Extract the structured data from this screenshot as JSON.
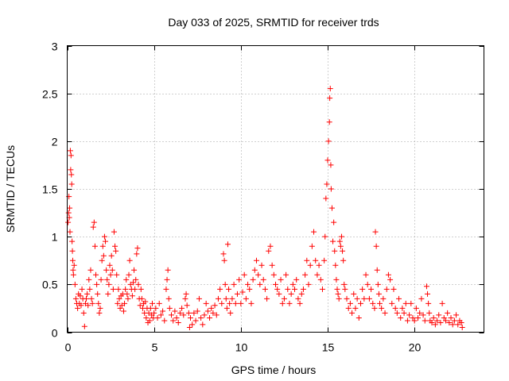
{
  "chart_data": {
    "type": "scatter",
    "title": "Day 033 of 2025, SRMTID for receiver trds",
    "xlabel": "GPS time / hours",
    "ylabel": "SRMTID / TECUs",
    "xlim": [
      0,
      24
    ],
    "ylim": [
      0,
      3
    ],
    "x_ticks": [
      0,
      5,
      10,
      15,
      20
    ],
    "y_ticks": [
      0,
      0.5,
      1,
      1.5,
      2,
      2.5,
      3
    ],
    "x_tick_labels": [
      "0",
      "5",
      "10",
      "15",
      "20"
    ],
    "y_tick_labels": [
      "0",
      "0.5",
      "1",
      "1.5",
      "2",
      "2.5",
      "3"
    ],
    "grid": true,
    "marker": "+",
    "color": "#ff0000",
    "series": [
      {
        "name": "SRMTID",
        "points": [
          [
            0.05,
            1.15
          ],
          [
            0.08,
            1.25
          ],
          [
            0.1,
            1.42
          ],
          [
            0.12,
            1.2
          ],
          [
            0.14,
            1.3
          ],
          [
            0.16,
            1.05
          ],
          [
            0.18,
            1.9
          ],
          [
            0.2,
            1.7
          ],
          [
            0.22,
            1.85
          ],
          [
            0.24,
            1.65
          ],
          [
            0.26,
            1.55
          ],
          [
            0.28,
            0.95
          ],
          [
            0.3,
            0.85
          ],
          [
            0.32,
            0.75
          ],
          [
            0.34,
            0.65
          ],
          [
            0.36,
            0.6
          ],
          [
            0.4,
            0.7
          ],
          [
            0.45,
            0.5
          ],
          [
            0.5,
            0.35
          ],
          [
            0.55,
            0.3
          ],
          [
            0.6,
            0.25
          ],
          [
            0.65,
            0.4
          ],
          [
            0.7,
            0.3
          ],
          [
            0.75,
            0.38
          ],
          [
            0.8,
            0.28
          ],
          [
            0.85,
            0.45
          ],
          [
            0.9,
            0.35
          ],
          [
            0.95,
            0.2
          ],
          [
            1.0,
            0.06
          ],
          [
            1.05,
            0.3
          ],
          [
            1.1,
            0.35
          ],
          [
            1.15,
            0.4
          ],
          [
            1.2,
            0.28
          ],
          [
            1.25,
            0.55
          ],
          [
            1.3,
            0.45
          ],
          [
            1.35,
            0.65
          ],
          [
            1.4,
            0.35
          ],
          [
            1.45,
            0.3
          ],
          [
            1.5,
            1.1
          ],
          [
            1.55,
            1.15
          ],
          [
            1.6,
            0.9
          ],
          [
            1.65,
            0.6
          ],
          [
            1.7,
            0.5
          ],
          [
            1.75,
            0.4
          ],
          [
            1.8,
            0.3
          ],
          [
            1.85,
            0.2
          ],
          [
            1.9,
            0.25
          ],
          [
            1.95,
            0.55
          ],
          [
            2.0,
            0.75
          ],
          [
            2.05,
            0.9
          ],
          [
            2.1,
            0.8
          ],
          [
            2.15,
            1.0
          ],
          [
            2.2,
            0.95
          ],
          [
            2.25,
            0.65
          ],
          [
            2.3,
            0.55
          ],
          [
            2.35,
            0.4
          ],
          [
            2.4,
            0.5
          ],
          [
            2.45,
            0.7
          ],
          [
            2.5,
            0.6
          ],
          [
            2.55,
            0.8
          ],
          [
            2.6,
            0.65
          ],
          [
            2.65,
            0.45
          ],
          [
            2.7,
            1.05
          ],
          [
            2.75,
            0.9
          ],
          [
            2.8,
            0.85
          ],
          [
            2.85,
            0.6
          ],
          [
            2.9,
            0.3
          ],
          [
            2.95,
            0.45
          ],
          [
            3.0,
            0.35
          ],
          [
            3.05,
            0.25
          ],
          [
            3.1,
            0.38
          ],
          [
            3.15,
            0.28
          ],
          [
            3.2,
            0.4
          ],
          [
            3.25,
            0.22
          ],
          [
            3.3,
            0.3
          ],
          [
            3.35,
            0.45
          ],
          [
            3.4,
            0.55
          ],
          [
            3.45,
            0.4
          ],
          [
            3.5,
            0.35
          ],
          [
            3.55,
            0.6
          ],
          [
            3.6,
            0.75
          ],
          [
            3.65,
            0.5
          ],
          [
            3.7,
            0.45
          ],
          [
            3.75,
            0.38
          ],
          [
            3.8,
            0.52
          ],
          [
            3.85,
            0.65
          ],
          [
            3.9,
            0.45
          ],
          [
            3.95,
            0.55
          ],
          [
            4.0,
            0.82
          ],
          [
            4.05,
            0.88
          ],
          [
            4.1,
            0.5
          ],
          [
            4.15,
            0.35
          ],
          [
            4.2,
            0.28
          ],
          [
            4.25,
            0.45
          ],
          [
            4.3,
            0.35
          ],
          [
            4.35,
            0.25
          ],
          [
            4.4,
            0.3
          ],
          [
            4.45,
            0.2
          ],
          [
            4.5,
            0.32
          ],
          [
            4.55,
            0.15
          ],
          [
            4.6,
            0.25
          ],
          [
            4.65,
            0.1
          ],
          [
            4.7,
            0.2
          ],
          [
            4.75,
            0.12
          ],
          [
            4.8,
            0.25
          ],
          [
            4.85,
            0.18
          ],
          [
            4.9,
            0.3
          ],
          [
            4.95,
            0.15
          ],
          [
            5.0,
            0.2
          ],
          [
            5.1,
            0.25
          ],
          [
            5.2,
            0.15
          ],
          [
            5.3,
            0.3
          ],
          [
            5.4,
            0.18
          ],
          [
            5.5,
            0.22
          ],
          [
            5.6,
            0.12
          ],
          [
            5.7,
            0.45
          ],
          [
            5.75,
            0.55
          ],
          [
            5.8,
            0.65
          ],
          [
            5.85,
            0.35
          ],
          [
            5.9,
            0.25
          ],
          [
            6.0,
            0.18
          ],
          [
            6.1,
            0.12
          ],
          [
            6.2,
            0.22
          ],
          [
            6.3,
            0.15
          ],
          [
            6.4,
            0.1
          ],
          [
            6.5,
            0.2
          ],
          [
            6.6,
            0.25
          ],
          [
            6.7,
            0.18
          ],
          [
            6.8,
            0.35
          ],
          [
            6.85,
            0.4
          ],
          [
            6.9,
            0.28
          ],
          [
            7.0,
            0.2
          ],
          [
            7.05,
            0.05
          ],
          [
            7.1,
            0.15
          ],
          [
            7.2,
            0.08
          ],
          [
            7.3,
            0.2
          ],
          [
            7.4,
            0.12
          ],
          [
            7.5,
            0.22
          ],
          [
            7.6,
            0.35
          ],
          [
            7.7,
            0.15
          ],
          [
            7.8,
            0.08
          ],
          [
            7.9,
            0.18
          ],
          [
            8.0,
            0.3
          ],
          [
            8.1,
            0.22
          ],
          [
            8.2,
            0.15
          ],
          [
            8.3,
            0.25
          ],
          [
            8.4,
            0.2
          ],
          [
            8.5,
            0.28
          ],
          [
            8.6,
            0.18
          ],
          [
            8.7,
            0.35
          ],
          [
            8.8,
            0.45
          ],
          [
            8.9,
            0.3
          ],
          [
            9.0,
            0.82
          ],
          [
            9.05,
            0.75
          ],
          [
            9.1,
            0.5
          ],
          [
            9.15,
            0.35
          ],
          [
            9.2,
            0.25
          ],
          [
            9.25,
            0.92
          ],
          [
            9.3,
            0.45
          ],
          [
            9.35,
            0.3
          ],
          [
            9.4,
            0.2
          ],
          [
            9.5,
            0.35
          ],
          [
            9.6,
            0.5
          ],
          [
            9.7,
            0.3
          ],
          [
            9.8,
            0.4
          ],
          [
            9.9,
            0.55
          ],
          [
            10.0,
            0.3
          ],
          [
            10.1,
            0.42
          ],
          [
            10.2,
            0.6
          ],
          [
            10.3,
            0.35
          ],
          [
            10.4,
            0.5
          ],
          [
            10.5,
            0.45
          ],
          [
            10.6,
            0.3
          ],
          [
            10.7,
            0.55
          ],
          [
            10.8,
            0.65
          ],
          [
            10.9,
            0.75
          ],
          [
            11.0,
            0.6
          ],
          [
            11.1,
            0.5
          ],
          [
            11.2,
            0.7
          ],
          [
            11.3,
            0.55
          ],
          [
            11.4,
            0.45
          ],
          [
            11.5,
            0.35
          ],
          [
            11.6,
            0.85
          ],
          [
            11.7,
            0.9
          ],
          [
            11.8,
            0.7
          ],
          [
            11.9,
            0.6
          ],
          [
            12.0,
            0.5
          ],
          [
            12.1,
            0.45
          ],
          [
            12.2,
            0.4
          ],
          [
            12.3,
            0.55
          ],
          [
            12.4,
            0.3
          ],
          [
            12.5,
            0.35
          ],
          [
            12.6,
            0.6
          ],
          [
            12.7,
            0.45
          ],
          [
            12.8,
            0.3
          ],
          [
            12.9,
            0.4
          ],
          [
            13.0,
            0.5
          ],
          [
            13.1,
            0.45
          ],
          [
            13.2,
            0.55
          ],
          [
            13.3,
            0.35
          ],
          [
            13.4,
            0.3
          ],
          [
            13.5,
            0.4
          ],
          [
            13.6,
            0.45
          ],
          [
            13.7,
            0.6
          ],
          [
            13.8,
            0.75
          ],
          [
            13.9,
            0.5
          ],
          [
            14.0,
            0.7
          ],
          [
            14.1,
            0.9
          ],
          [
            14.2,
            1.05
          ],
          [
            14.3,
            0.75
          ],
          [
            14.4,
            0.6
          ],
          [
            14.5,
            0.7
          ],
          [
            14.6,
            0.55
          ],
          [
            14.7,
            0.45
          ],
          [
            14.8,
            0.75
          ],
          [
            14.85,
            1.0
          ],
          [
            14.9,
            1.4
          ],
          [
            14.95,
            1.55
          ],
          [
            15.0,
            1.8
          ],
          [
            15.05,
            2.0
          ],
          [
            15.1,
            2.2
          ],
          [
            15.12,
            2.45
          ],
          [
            15.15,
            2.55
          ],
          [
            15.18,
            1.75
          ],
          [
            15.2,
            1.5
          ],
          [
            15.25,
            1.3
          ],
          [
            15.3,
            0.95
          ],
          [
            15.35,
            1.15
          ],
          [
            15.4,
            0.85
          ],
          [
            15.45,
            0.7
          ],
          [
            15.5,
            0.55
          ],
          [
            15.55,
            0.45
          ],
          [
            15.6,
            0.4
          ],
          [
            15.65,
            0.35
          ],
          [
            15.7,
            0.95
          ],
          [
            15.75,
            0.9
          ],
          [
            15.8,
            1.0
          ],
          [
            15.85,
            0.85
          ],
          [
            15.9,
            0.75
          ],
          [
            15.95,
            0.5
          ],
          [
            16.0,
            0.45
          ],
          [
            16.1,
            0.35
          ],
          [
            16.2,
            0.25
          ],
          [
            16.3,
            0.3
          ],
          [
            16.4,
            0.2
          ],
          [
            16.5,
            0.4
          ],
          [
            16.6,
            0.25
          ],
          [
            16.7,
            0.35
          ],
          [
            16.8,
            0.15
          ],
          [
            16.9,
            0.3
          ],
          [
            17.0,
            0.45
          ],
          [
            17.1,
            0.35
          ],
          [
            17.2,
            0.6
          ],
          [
            17.3,
            0.5
          ],
          [
            17.4,
            0.35
          ],
          [
            17.5,
            0.45
          ],
          [
            17.6,
            0.3
          ],
          [
            17.7,
            0.25
          ],
          [
            17.75,
            1.05
          ],
          [
            17.8,
            0.9
          ],
          [
            17.85,
            0.65
          ],
          [
            17.9,
            0.5
          ],
          [
            17.95,
            0.4
          ],
          [
            18.0,
            0.3
          ],
          [
            18.1,
            0.25
          ],
          [
            18.2,
            0.35
          ],
          [
            18.3,
            0.2
          ],
          [
            18.4,
            0.45
          ],
          [
            18.5,
            0.6
          ],
          [
            18.6,
            0.55
          ],
          [
            18.7,
            0.3
          ],
          [
            18.8,
            0.45
          ],
          [
            18.9,
            0.25
          ],
          [
            19.0,
            0.2
          ],
          [
            19.1,
            0.35
          ],
          [
            19.2,
            0.15
          ],
          [
            19.3,
            0.25
          ],
          [
            19.4,
            0.2
          ],
          [
            19.5,
            0.3
          ],
          [
            19.6,
            0.12
          ],
          [
            19.7,
            0.18
          ],
          [
            19.8,
            0.3
          ],
          [
            19.9,
            0.15
          ],
          [
            20.0,
            0.12
          ],
          [
            20.1,
            0.25
          ],
          [
            20.2,
            0.15
          ],
          [
            20.3,
            0.2
          ],
          [
            20.4,
            0.35
          ],
          [
            20.5,
            0.18
          ],
          [
            20.6,
            0.12
          ],
          [
            20.7,
            0.48
          ],
          [
            20.75,
            0.4
          ],
          [
            20.8,
            0.3
          ],
          [
            20.85,
            0.2
          ],
          [
            20.9,
            0.12
          ],
          [
            21.0,
            0.1
          ],
          [
            21.1,
            0.15
          ],
          [
            21.2,
            0.08
          ],
          [
            21.3,
            0.12
          ],
          [
            21.4,
            0.18
          ],
          [
            21.5,
            0.1
          ],
          [
            21.6,
            0.3
          ],
          [
            21.7,
            0.15
          ],
          [
            21.8,
            0.12
          ],
          [
            21.9,
            0.2
          ],
          [
            22.0,
            0.1
          ],
          [
            22.1,
            0.15
          ],
          [
            22.2,
            0.08
          ],
          [
            22.3,
            0.12
          ],
          [
            22.4,
            0.18
          ],
          [
            22.5,
            0.08
          ],
          [
            22.6,
            0.12
          ],
          [
            22.7,
            0.1
          ],
          [
            22.75,
            0.05
          ]
        ]
      }
    ]
  }
}
